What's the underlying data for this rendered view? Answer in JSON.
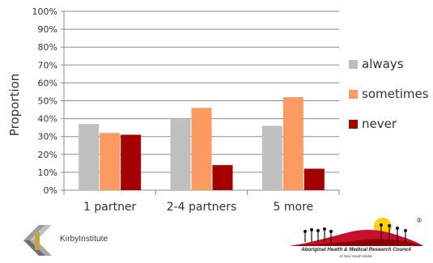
{
  "chart_data": {
    "type": "bar",
    "categories": [
      "1 partner",
      "2-4 partners",
      "5 more"
    ],
    "series": [
      {
        "name": "always",
        "color": "#bfbfbf",
        "values": [
          0.37,
          0.4,
          0.36
        ]
      },
      {
        "name": "sometimes",
        "color": "#fd9a62",
        "values": [
          0.32,
          0.46,
          0.52
        ]
      },
      {
        "name": "never",
        "color": "#a50000",
        "values": [
          0.31,
          0.14,
          0.12
        ]
      }
    ],
    "ylabel": "Proportion",
    "ylim": [
      0,
      1
    ],
    "yticks": [
      "0%",
      "10%",
      "20%",
      "30%",
      "40%",
      "50%",
      "60%",
      "70%",
      "80%",
      "90%",
      "100%"
    ],
    "grid": true,
    "legend_position": "right"
  },
  "logos": {
    "kirby": {
      "text": "KirbyInstitute"
    },
    "ahmrc": {
      "text": "Aboriginal Health & Medical Research Council",
      "subtext": "of New South Wales",
      "registered_mark": "®"
    }
  }
}
